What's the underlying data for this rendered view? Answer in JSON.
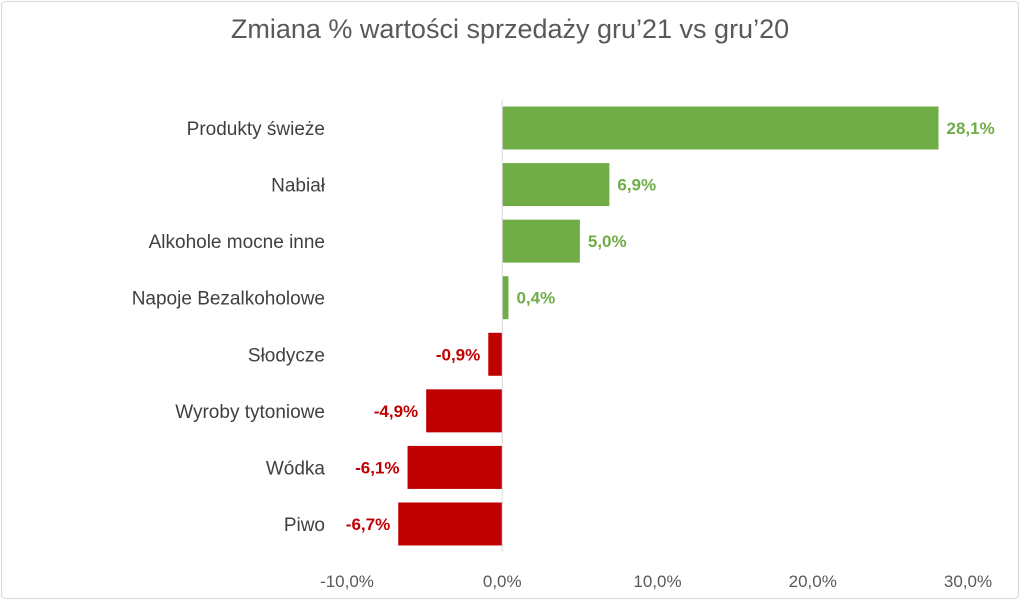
{
  "chart_data": {
    "type": "bar",
    "orientation": "horizontal",
    "title": "Zmiana % wartości sprzedaży gru’21 vs gru’20",
    "categories": [
      "Produkty świeże",
      "Nabiał",
      "Alkohole mocne inne",
      "Napoje Bezalkoholowe",
      "Słodycze",
      "Wyroby tytoniowe",
      "Wódka",
      "Piwo"
    ],
    "values": [
      28.1,
      6.9,
      5.0,
      0.4,
      -0.9,
      -4.9,
      -6.1,
      -6.7
    ],
    "data_labels": [
      "28,1%",
      "6,9%",
      "5,0%",
      "0,4%",
      "-0,9%",
      "-4,9%",
      "-6,1%",
      "-6,7%"
    ],
    "xlim": [
      -10,
      30
    ],
    "x_ticks": [
      -10,
      0,
      10,
      20,
      30
    ],
    "x_tick_labels": [
      "-10,0%",
      "0,0%",
      "10,0%",
      "20,0%",
      "30,0%"
    ],
    "grid": false,
    "colors": {
      "positive": "#70AD47",
      "negative": "#C00000"
    }
  }
}
